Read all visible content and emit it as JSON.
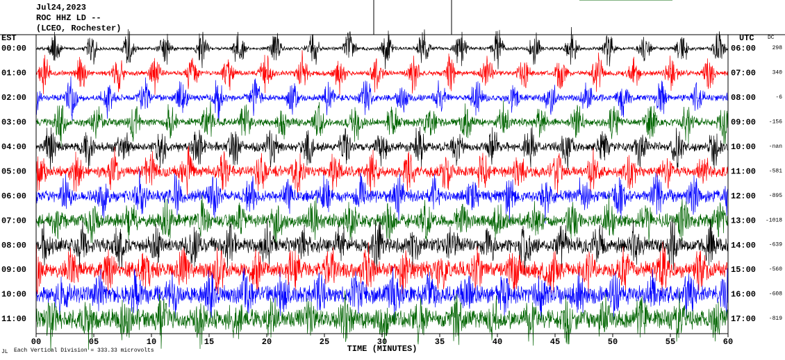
{
  "header": {
    "date": "Jul24,2023",
    "station": "ROC HHZ LD --",
    "location": "(LCEO, Rochester)"
  },
  "left_axis_label": "EST",
  "right_axis_label": "UTC",
  "dc_label": "DC",
  "rows": [
    {
      "est": "00:00",
      "utc": "06:00",
      "dc": "298",
      "color": "#000000"
    },
    {
      "est": "01:00",
      "utc": "07:00",
      "dc": "340",
      "color": "#ff0000"
    },
    {
      "est": "02:00",
      "utc": "08:00",
      "dc": "-6",
      "color": "#0000ff"
    },
    {
      "est": "03:00",
      "utc": "09:00",
      "dc": "-156",
      "color": "#006400"
    },
    {
      "est": "04:00",
      "utc": "10:00",
      "dc": "-nan",
      "color": "#000000"
    },
    {
      "est": "05:00",
      "utc": "11:00",
      "dc": "-581",
      "color": "#ff0000"
    },
    {
      "est": "06:00",
      "utc": "12:00",
      "dc": "-895",
      "color": "#0000ff"
    },
    {
      "est": "07:00",
      "utc": "13:00",
      "dc": "-1018",
      "color": "#006400"
    },
    {
      "est": "08:00",
      "utc": "14:00",
      "dc": "-639",
      "color": "#000000"
    },
    {
      "est": "09:00",
      "utc": "15:00",
      "dc": "-560",
      "color": "#ff0000"
    },
    {
      "est": "10:00",
      "utc": "16:00",
      "dc": "-608",
      "color": "#0000ff"
    },
    {
      "est": "11:00",
      "utc": "17:00",
      "dc": "-819",
      "color": "#006400"
    }
  ],
  "xaxis": {
    "label": "TIME (MINUTES)",
    "xlim": [
      0,
      60
    ],
    "ticks": [
      {
        "value": 0,
        "label": "00"
      },
      {
        "value": 5,
        "label": "05"
      },
      10,
      15,
      20,
      25,
      30,
      35,
      40,
      45,
      50,
      55,
      60
    ]
  },
  "footer": {
    "mark": "JL",
    "note": "Each Vertical Division = 333.33 microvolts"
  }
}
